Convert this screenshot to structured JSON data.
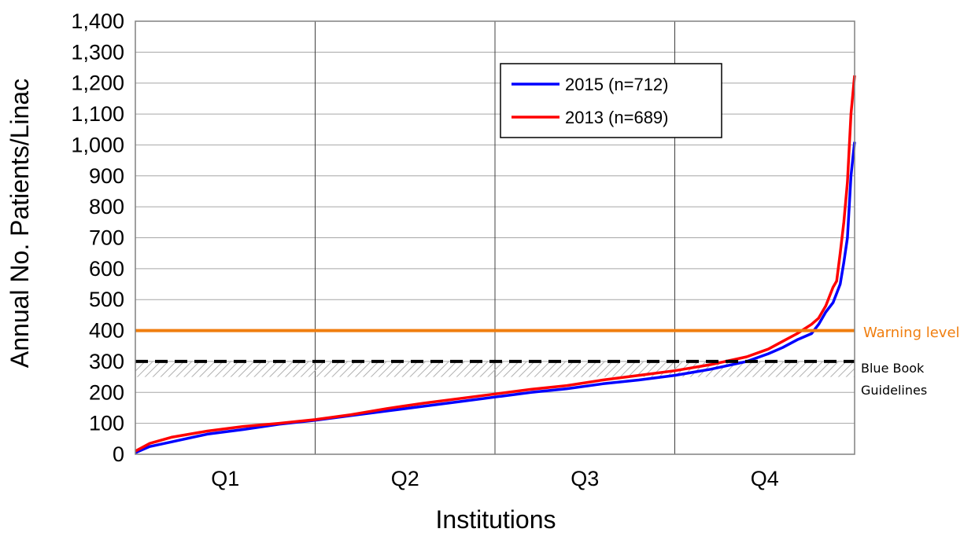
{
  "chart_data": {
    "type": "line",
    "title": "",
    "xlabel": "Institutions",
    "ylabel": "Annual No. Patients/Linac",
    "ylim": [
      0,
      1400
    ],
    "yticks": [
      0,
      100,
      200,
      300,
      400,
      500,
      600,
      700,
      800,
      900,
      1000,
      1100,
      1200,
      1300,
      1400
    ],
    "ytick_labels": [
      "0",
      "100",
      "200",
      "300",
      "400",
      "500",
      "600",
      "700",
      "800",
      "900",
      "1,000",
      "1,100",
      "1,200",
      "1,300",
      "1,400"
    ],
    "xlim": [
      0,
      1
    ],
    "x_categories": [
      "Q1",
      "Q2",
      "Q3",
      "Q4"
    ],
    "grid": true,
    "legend_position": "top-right",
    "series": [
      {
        "name": "2015 (n=712)",
        "color": "#0000ff",
        "x": [
          0,
          0.02,
          0.05,
          0.1,
          0.15,
          0.2,
          0.25,
          0.3,
          0.35,
          0.4,
          0.45,
          0.5,
          0.55,
          0.6,
          0.65,
          0.7,
          0.75,
          0.8,
          0.85,
          0.88,
          0.9,
          0.92,
          0.94,
          0.95,
          0.96,
          0.97,
          0.975,
          0.98,
          0.985,
          0.99,
          0.995,
          1.0
        ],
        "y": [
          5,
          25,
          40,
          65,
          80,
          97,
          110,
          125,
          140,
          155,
          170,
          185,
          200,
          212,
          228,
          240,
          255,
          275,
          300,
          325,
          345,
          370,
          390,
          420,
          460,
          490,
          520,
          550,
          620,
          700,
          900,
          1010
        ]
      },
      {
        "name": "2013 (n=689)",
        "color": "#ff0000",
        "x": [
          0,
          0.02,
          0.05,
          0.1,
          0.15,
          0.2,
          0.25,
          0.3,
          0.35,
          0.4,
          0.45,
          0.5,
          0.55,
          0.6,
          0.65,
          0.7,
          0.75,
          0.8,
          0.85,
          0.88,
          0.9,
          0.92,
          0.94,
          0.95,
          0.96,
          0.97,
          0.975,
          0.98,
          0.985,
          0.99,
          0.995,
          1.0
        ],
        "y": [
          10,
          35,
          55,
          75,
          90,
          100,
          112,
          128,
          148,
          165,
          180,
          195,
          210,
          222,
          240,
          255,
          270,
          290,
          315,
          340,
          365,
          390,
          420,
          440,
          480,
          540,
          560,
          650,
          750,
          880,
          1100,
          1225
        ]
      }
    ],
    "reference_lines": [
      {
        "label": "Warning level",
        "y": 400,
        "color": "#f07e0f",
        "style": "solid"
      },
      {
        "label": "Blue Book Guidelines",
        "y": 300,
        "color": "#000000",
        "style": "dashed",
        "band": [
          250,
          300
        ]
      }
    ]
  }
}
